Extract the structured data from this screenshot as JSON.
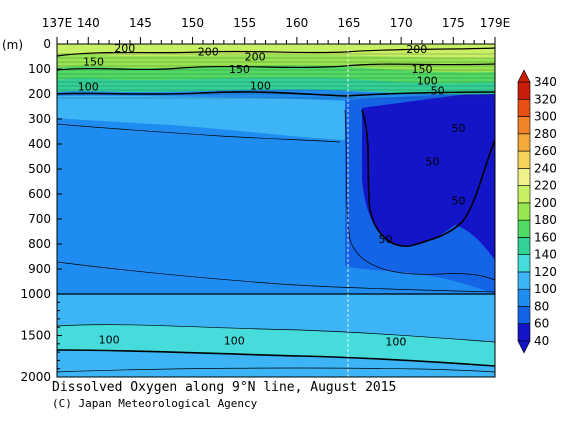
{
  "chart_data": {
    "type": "heatmap",
    "title": "Dissolved Oxygen along 9°N line, August 2015",
    "credit": "(C) Japan Meteorological Agency",
    "x_axis": {
      "range": [
        137,
        179
      ],
      "ticks": [
        {
          "value": 137,
          "label": "137E"
        },
        {
          "value": 140,
          "label": "140"
        },
        {
          "value": 145,
          "label": "145"
        },
        {
          "value": 150,
          "label": "150"
        },
        {
          "value": 155,
          "label": "155"
        },
        {
          "value": 160,
          "label": "160"
        },
        {
          "value": 165,
          "label": "165"
        },
        {
          "value": 170,
          "label": "170"
        },
        {
          "value": 175,
          "label": "175"
        },
        {
          "value": 179,
          "label": "179E"
        }
      ]
    },
    "y_axis": {
      "unit": "(m)",
      "upper_panel_range": [
        0,
        1000
      ],
      "lower_panel_range": [
        1000,
        2000
      ],
      "ticks_upper": [
        0,
        100,
        200,
        300,
        400,
        500,
        600,
        700,
        800,
        900,
        1000
      ],
      "ticks_lower": [
        1500,
        2000
      ]
    },
    "colorbar": {
      "levels": [
        40,
        60,
        80,
        100,
        120,
        140,
        160,
        180,
        200,
        220,
        240,
        260,
        280,
        300,
        320,
        340
      ],
      "colors": [
        "#1414c8",
        "#1464e6",
        "#1e8cf0",
        "#3cb4f5",
        "#46dcdc",
        "#32d296",
        "#50dc64",
        "#96e650",
        "#c8f064",
        "#f0f08c",
        "#f5d25a",
        "#f5aa3c",
        "#f08228",
        "#e65014",
        "#c81e0a"
      ]
    },
    "contour_labels": [
      {
        "lon": 143.5,
        "depth": 15,
        "text": "200"
      },
      {
        "lon": 151.5,
        "depth": 30,
        "text": "200"
      },
      {
        "lon": 156,
        "depth": 50,
        "text": "200"
      },
      {
        "lon": 171.5,
        "depth": 20,
        "text": "200"
      },
      {
        "lon": 140.5,
        "depth": 70,
        "text": "150"
      },
      {
        "lon": 154.5,
        "depth": 100,
        "text": "150"
      },
      {
        "lon": 172,
        "depth": 100,
        "text": "150"
      },
      {
        "lon": 172.5,
        "depth": 145,
        "text": "100"
      },
      {
        "lon": 140,
        "depth": 170,
        "text": "100"
      },
      {
        "lon": 156.5,
        "depth": 165,
        "text": "100"
      },
      {
        "lon": 173.5,
        "depth": 185,
        "text": "50"
      },
      {
        "lon": 175.5,
        "depth": 335,
        "text": "50"
      },
      {
        "lon": 173,
        "depth": 470,
        "text": "50"
      },
      {
        "lon": 175.5,
        "depth": 625,
        "text": "50"
      },
      {
        "lon": 168.5,
        "depth": 780,
        "text": "50"
      },
      {
        "lon": 142,
        "depth": 1550,
        "text": "100"
      },
      {
        "lon": 154,
        "depth": 1560,
        "text": "100"
      },
      {
        "lon": 169.5,
        "depth": 1575,
        "text": "100"
      }
    ]
  }
}
